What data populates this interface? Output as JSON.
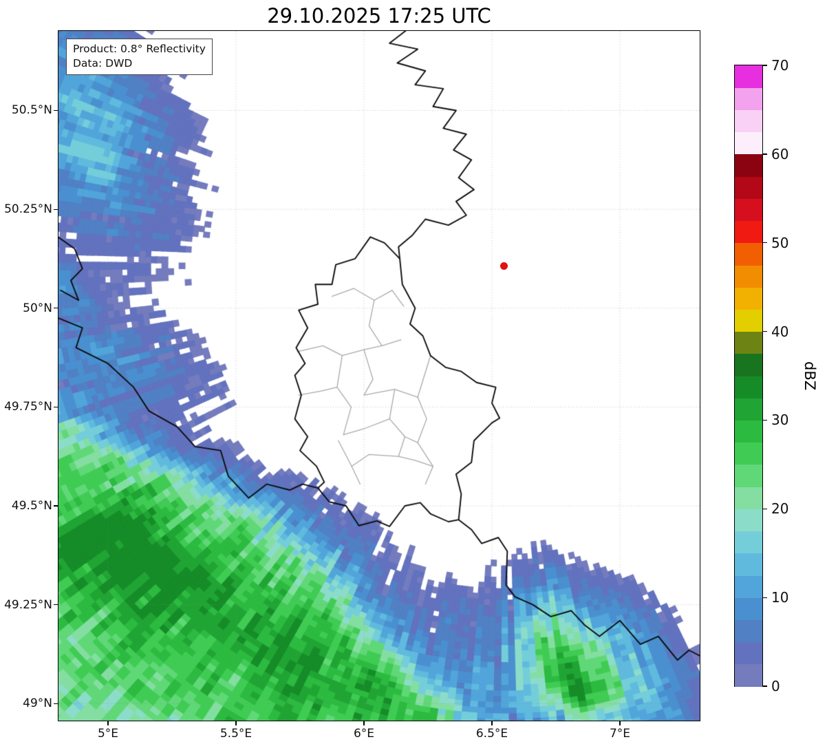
{
  "title": "29.10.2025 17:25 UTC",
  "info_box": {
    "line1": "Product: 0.8° Reflectivity",
    "line2": "Data: DWD"
  },
  "map": {
    "extent": {
      "lon_min": 4.8065,
      "lon_max": 7.3118,
      "lat_min": 48.957,
      "lat_max": 50.701
    },
    "grid_color": "#8c8c8c",
    "x_ticks": [
      {
        "value": 5.0,
        "label": "5°E"
      },
      {
        "value": 5.5,
        "label": "5.5°E"
      },
      {
        "value": 6.0,
        "label": "6°E"
      },
      {
        "value": 6.5,
        "label": "6.5°E"
      },
      {
        "value": 7.0,
        "label": "7°E"
      }
    ],
    "y_ticks": [
      {
        "value": 49.0,
        "label": "49°N"
      },
      {
        "value": 49.25,
        "label": "49.25°N"
      },
      {
        "value": 49.5,
        "label": "49.5°N"
      },
      {
        "value": 49.75,
        "label": "49.75°N"
      },
      {
        "value": 50.0,
        "label": "50°N"
      },
      {
        "value": 50.25,
        "label": "50.25°N"
      },
      {
        "value": 50.5,
        "label": "50.5°N"
      }
    ],
    "radar_site": {
      "lon": 6.548,
      "lat": 50.107,
      "color": "#e01212"
    },
    "border_color": "#0d0d0d",
    "district_color": "#a8a8a8",
    "borders_national": [
      [
        [
          6.17,
          50.705
        ],
        [
          6.1,
          50.67
        ],
        [
          6.21,
          50.655
        ],
        [
          6.13,
          50.62
        ],
        [
          6.24,
          50.6
        ],
        [
          6.2,
          50.565
        ],
        [
          6.31,
          50.555
        ],
        [
          6.27,
          50.51
        ],
        [
          6.36,
          50.5
        ],
        [
          6.31,
          50.455
        ],
        [
          6.4,
          50.44
        ],
        [
          6.35,
          50.4
        ],
        [
          6.42,
          50.375
        ],
        [
          6.37,
          50.33
        ],
        [
          6.43,
          50.3
        ],
        [
          6.36,
          50.27
        ],
        [
          6.4,
          50.235
        ],
        [
          6.33,
          50.21
        ],
        [
          6.24,
          50.225
        ],
        [
          6.19,
          50.185
        ],
        [
          6.135,
          50.155
        ],
        [
          6.14,
          50.125
        ]
      ],
      [
        [
          6.14,
          50.125
        ],
        [
          6.08,
          50.165
        ],
        [
          6.025,
          50.18
        ],
        [
          5.965,
          50.125
        ],
        [
          5.89,
          50.11
        ],
        [
          5.875,
          50.06
        ],
        [
          5.81,
          50.06
        ],
        [
          5.82,
          50.01
        ],
        [
          5.745,
          49.995
        ],
        [
          5.78,
          49.95
        ],
        [
          5.735,
          49.9
        ],
        [
          5.77,
          49.86
        ],
        [
          5.73,
          49.83
        ],
        [
          5.755,
          49.78
        ],
        [
          5.73,
          49.72
        ],
        [
          5.78,
          49.675
        ],
        [
          5.75,
          49.64
        ],
        [
          5.815,
          49.6
        ],
        [
          5.845,
          49.56
        ],
        [
          5.82,
          49.545
        ],
        [
          5.865,
          49.51
        ],
        [
          5.93,
          49.5
        ],
        [
          5.98,
          49.45
        ],
        [
          6.05,
          49.462
        ],
        [
          6.1,
          49.448
        ],
        [
          6.16,
          49.5
        ],
        [
          6.22,
          49.508
        ],
        [
          6.26,
          49.48
        ],
        [
          6.33,
          49.46
        ],
        [
          6.37,
          49.465
        ],
        [
          6.38,
          49.53
        ],
        [
          6.36,
          49.58
        ],
        [
          6.42,
          49.61
        ],
        [
          6.43,
          49.665
        ],
        [
          6.5,
          49.71
        ],
        [
          6.53,
          49.722
        ],
        [
          6.5,
          49.76
        ],
        [
          6.515,
          49.8
        ],
        [
          6.44,
          49.812
        ],
        [
          6.38,
          49.84
        ],
        [
          6.32,
          49.85
        ],
        [
          6.26,
          49.88
        ],
        [
          6.23,
          49.93
        ],
        [
          6.18,
          49.96
        ],
        [
          6.2,
          50.0
        ],
        [
          6.15,
          50.06
        ],
        [
          6.14,
          50.125
        ]
      ],
      [
        [
          6.37,
          49.465
        ],
        [
          6.42,
          49.44
        ],
        [
          6.46,
          49.405
        ],
        [
          6.525,
          49.42
        ],
        [
          6.56,
          49.385
        ],
        [
          6.555,
          49.3
        ],
        [
          6.59,
          49.27
        ],
        [
          6.66,
          49.25
        ],
        [
          6.73,
          49.22
        ],
        [
          6.81,
          49.235
        ],
        [
          6.86,
          49.2
        ],
        [
          6.92,
          49.17
        ],
        [
          7.0,
          49.21
        ],
        [
          7.08,
          49.15
        ],
        [
          7.15,
          49.17
        ],
        [
          7.225,
          49.11
        ],
        [
          7.27,
          49.135
        ],
        [
          7.315,
          49.12
        ]
      ],
      [
        [
          4.805,
          49.975
        ],
        [
          4.9,
          49.95
        ],
        [
          4.875,
          49.9
        ],
        [
          5.0,
          49.86
        ],
        [
          5.1,
          49.8
        ],
        [
          5.16,
          49.74
        ],
        [
          5.27,
          49.7
        ],
        [
          5.34,
          49.65
        ],
        [
          5.44,
          49.64
        ],
        [
          5.47,
          49.575
        ],
        [
          5.55,
          49.52
        ],
        [
          5.62,
          49.555
        ],
        [
          5.71,
          49.54
        ],
        [
          5.76,
          49.555
        ],
        [
          5.82,
          49.545
        ]
      ],
      [
        [
          4.805,
          50.18
        ],
        [
          4.87,
          50.15
        ],
        [
          4.9,
          50.1
        ],
        [
          4.855,
          50.07
        ],
        [
          4.885,
          50.02
        ],
        [
          4.815,
          50.045
        ]
      ]
    ],
    "borders_district": [
      [
        [
          5.875,
          50.03
        ],
        [
          5.96,
          50.05
        ],
        [
          6.04,
          50.02
        ],
        [
          6.11,
          50.045
        ],
        [
          6.155,
          50.005
        ]
      ],
      [
        [
          6.04,
          50.02
        ],
        [
          6.02,
          49.955
        ],
        [
          6.07,
          49.905
        ],
        [
          6.145,
          49.92
        ]
      ],
      [
        [
          5.74,
          49.89
        ],
        [
          5.84,
          49.905
        ],
        [
          5.915,
          49.88
        ],
        [
          6.0,
          49.895
        ],
        [
          6.07,
          49.905
        ]
      ],
      [
        [
          5.915,
          49.88
        ],
        [
          5.895,
          49.8
        ],
        [
          5.95,
          49.75
        ],
        [
          5.92,
          49.68
        ]
      ],
      [
        [
          5.745,
          49.78
        ],
        [
          5.83,
          49.79
        ],
        [
          5.895,
          49.8
        ]
      ],
      [
        [
          6.0,
          49.895
        ],
        [
          6.035,
          49.82
        ],
        [
          6.0,
          49.78
        ],
        [
          6.12,
          49.795
        ],
        [
          6.21,
          49.775
        ],
        [
          6.26,
          49.88
        ]
      ],
      [
        [
          6.12,
          49.795
        ],
        [
          6.1,
          49.72
        ],
        [
          6.16,
          49.675
        ],
        [
          6.135,
          49.625
        ]
      ],
      [
        [
          5.92,
          49.68
        ],
        [
          6.0,
          49.695
        ],
        [
          6.1,
          49.72
        ]
      ],
      [
        [
          5.9,
          49.665
        ],
        [
          5.952,
          49.6
        ],
        [
          5.985,
          49.555
        ]
      ],
      [
        [
          5.952,
          49.6
        ],
        [
          6.02,
          49.63
        ],
        [
          6.135,
          49.625
        ],
        [
          6.2,
          49.615
        ],
        [
          6.27,
          49.6
        ],
        [
          6.24,
          49.555
        ]
      ],
      [
        [
          6.21,
          49.775
        ],
        [
          6.245,
          49.72
        ],
        [
          6.21,
          49.66
        ],
        [
          6.27,
          49.6
        ]
      ],
      [
        [
          6.16,
          49.675
        ],
        [
          6.21,
          49.66
        ]
      ]
    ]
  },
  "colorbar": {
    "label": "dBZ",
    "min": 0,
    "max": 70,
    "segment_dbz": 2.5,
    "ticks": [
      0,
      10,
      20,
      30,
      40,
      50,
      60,
      70
    ],
    "colors": [
      "#747cbe",
      "#6272be",
      "#5180c4",
      "#4a90d0",
      "#51a5da",
      "#60bade",
      "#74ceda",
      "#8cdcca",
      "#84dea2",
      "#60d878",
      "#40cc54",
      "#2cba40",
      "#20a534",
      "#168c28",
      "#19741f",
      "#6d8414",
      "#e3cf00",
      "#f2b000",
      "#f28c00",
      "#f25e02",
      "#f01a12",
      "#d50f1d",
      "#b20818",
      "#8b0311",
      "#fceefb",
      "#f9d0f6",
      "#f3a3ee",
      "#e72fe0"
    ]
  },
  "radar_field": {
    "max_range_km": 185,
    "fade_start_km": 148,
    "fade_rate_dbz_per_km": 0.22,
    "threshold_dbz": 2.0,
    "clamp_dbz": 34,
    "band": {
      "amp_dbz": 26,
      "az_start": 176,
      "az_softness_start": 4,
      "az_end": 258,
      "az_softness_end": 5,
      "az_vertex": 219,
      "az_halfwidth": 33,
      "r_base_km": 96,
      "r_quad_km": 33,
      "edge_width_km": 4.5
    },
    "cells": [
      {
        "id": "band-core-nw",
        "lon": 5.15,
        "lat": 49.37,
        "sig_maj_km": 18,
        "sig_min_km": 10,
        "angle_deg": -24,
        "amp_dbz": 6
      },
      {
        "id": "band-core-west",
        "lon": 4.98,
        "lat": 49.36,
        "sig_maj_km": 16,
        "sig_min_km": 10,
        "angle_deg": -24,
        "amp_dbz": 5
      },
      {
        "id": "band-core-mid",
        "lon": 5.72,
        "lat": 49.12,
        "sig_maj_km": 20,
        "sig_min_km": 10,
        "angle_deg": -24,
        "amp_dbz": 6
      },
      {
        "id": "band-core-se",
        "lon": 6.42,
        "lat": 48.98,
        "sig_maj_km": 14,
        "sig_min_km": 9,
        "angle_deg": -20,
        "amp_dbz": 8
      },
      {
        "id": "nw-blob",
        "lon": 4.91,
        "lat": 50.48,
        "sig_maj_km": 26,
        "sig_min_km": 15,
        "angle_deg": -63,
        "amp_dbz": 11
      },
      {
        "id": "nw-blob-core",
        "lon": 4.88,
        "lat": 50.4,
        "sig_maj_km": 10,
        "sig_min_km": 7,
        "angle_deg": -60,
        "amp_dbz": 6
      },
      {
        "id": "west-edge-blue",
        "lon": 4.95,
        "lat": 49.87,
        "sig_maj_km": 22,
        "sig_min_km": 9,
        "angle_deg": -15,
        "amp_dbz": 8
      },
      {
        "id": "west-edge-spot",
        "lon": 4.82,
        "lat": 50.06,
        "sig_maj_km": 7,
        "sig_min_km": 4,
        "angle_deg": -60,
        "amp_dbz": 6
      },
      {
        "id": "fringe-scatter-1",
        "lon": 5.9,
        "lat": 49.42,
        "sig_maj_km": 16,
        "sig_min_km": 8,
        "angle_deg": -24,
        "amp_dbz": 3
      },
      {
        "id": "fringe-scatter-2",
        "lon": 6.25,
        "lat": 49.22,
        "sig_maj_km": 12,
        "sig_min_km": 7,
        "angle_deg": -24,
        "amp_dbz": 3
      },
      {
        "id": "se-blob",
        "lon": 6.86,
        "lat": 49.07,
        "sig_maj_km": 18,
        "sig_min_km": 13,
        "angle_deg": -35,
        "amp_dbz": 22
      },
      {
        "id": "se-blob-core",
        "lon": 6.82,
        "lat": 49.05,
        "sig_maj_km": 7,
        "sig_min_km": 5,
        "angle_deg": -35,
        "amp_dbz": 10
      },
      {
        "id": "se-blue-column",
        "lon": 6.72,
        "lat": 49.2,
        "sig_maj_km": 10,
        "sig_min_km": 5,
        "angle_deg": -85,
        "amp_dbz": 8
      }
    ]
  }
}
